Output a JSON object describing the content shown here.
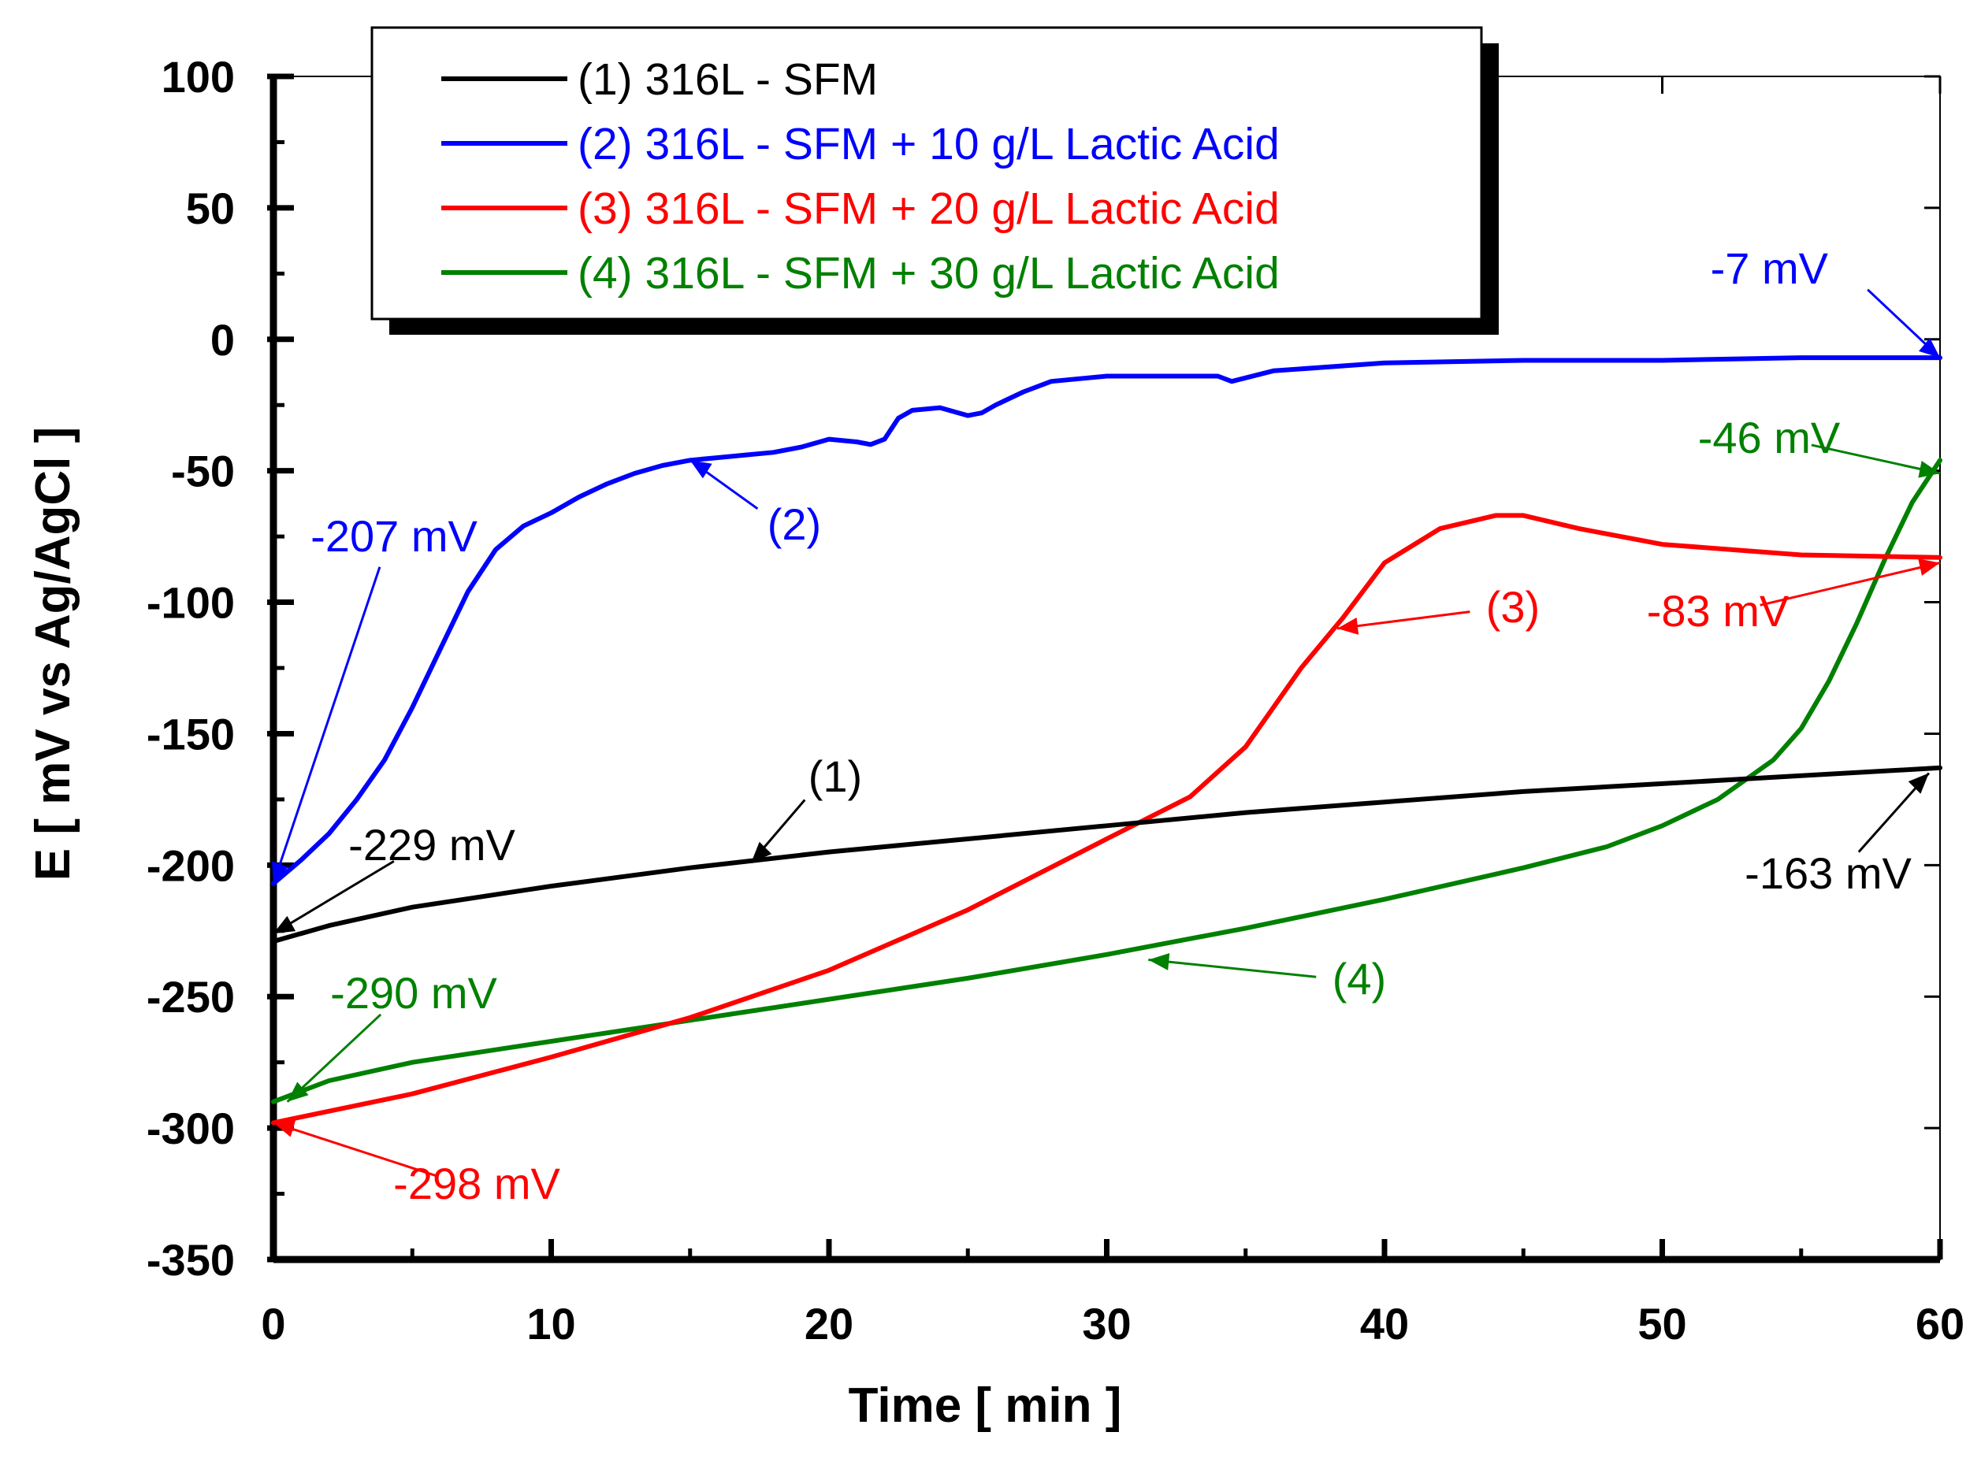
{
  "chart_data": {
    "type": "line",
    "title": "",
    "xlabel": "Time [ min ]",
    "ylabel": "E [ mV vs Ag/AgCl ]",
    "xlim": [
      0,
      60
    ],
    "ylim": [
      -350,
      100
    ],
    "xticks": [
      0,
      10,
      20,
      30,
      40,
      50,
      60
    ],
    "yticks": [
      100,
      50,
      0,
      -50,
      -100,
      -150,
      -200,
      -250,
      -300,
      -350
    ],
    "grid": false,
    "legend_position": "top-center",
    "series": [
      {
        "name": "(1) 316L - SFM",
        "color": "#000000",
        "x": [
          0,
          2,
          5,
          10,
          15,
          20,
          25,
          30,
          35,
          40,
          45,
          50,
          55,
          60
        ],
        "y": [
          -229,
          -223,
          -216,
          -208,
          -201,
          -195,
          -190,
          -185,
          -180,
          -176,
          -172,
          -169,
          -166,
          -163
        ]
      },
      {
        "name": "(2) 316L - SFM + 10 g/L Lactic Acid",
        "color": "#0000ff",
        "x": [
          0,
          1,
          2,
          3,
          4,
          5,
          6,
          7,
          8,
          9,
          10,
          11,
          12,
          13,
          14,
          15,
          16,
          17,
          18,
          19,
          20,
          21,
          21.5,
          22,
          22.5,
          23,
          24,
          25,
          25.5,
          26,
          27,
          28,
          30,
          32,
          34,
          34.5,
          36,
          40,
          45,
          50,
          55,
          60
        ],
        "y": [
          -207,
          -198,
          -188,
          -175,
          -160,
          -140,
          -118,
          -96,
          -80,
          -71,
          -66,
          -60,
          -55,
          -51,
          -48,
          -46,
          -45,
          -44,
          -43,
          -41,
          -38,
          -39,
          -40,
          -38,
          -30,
          -27,
          -26,
          -29,
          -28,
          -25,
          -20,
          -16,
          -14,
          -14,
          -14,
          -16,
          -12,
          -9,
          -8,
          -8,
          -7,
          -7
        ]
      },
      {
        "name": "(3) 316L - SFM + 20 g/L Lactic Acid",
        "color": "#ff0000",
        "x": [
          0,
          5,
          10,
          15,
          20,
          25,
          30,
          33,
          35,
          37,
          38.5,
          40,
          42,
          44,
          45,
          47,
          50,
          55,
          60
        ],
        "y": [
          -298,
          -287,
          -273,
          -258,
          -240,
          -217,
          -190,
          -174,
          -155,
          -125,
          -106,
          -85,
          -72,
          -67,
          -67,
          -72,
          -78,
          -82,
          -83
        ]
      },
      {
        "name": "(4) 316L - SFM + 30 g/L Lactic Acid",
        "color": "#008000",
        "x": [
          0,
          2,
          5,
          10,
          15,
          20,
          25,
          30,
          35,
          40,
          45,
          48,
          50,
          52,
          54,
          55,
          56,
          57,
          58,
          59,
          60
        ],
        "y": [
          -290,
          -282,
          -275,
          -267,
          -259,
          -251,
          -243,
          -234,
          -224,
          -213,
          -201,
          -193,
          -185,
          -175,
          -160,
          -148,
          -130,
          -108,
          -84,
          -62,
          -46
        ]
      }
    ],
    "annotations": [
      {
        "text": "-7 mV",
        "series": 2,
        "color": "#0000ff",
        "point": [
          60,
          -7
        ]
      },
      {
        "text": "(2)",
        "series": 2,
        "color": "#0000ff",
        "point": [
          15,
          -46
        ]
      },
      {
        "text": "-207 mV",
        "series": 2,
        "color": "#0000ff",
        "point": [
          0,
          -207
        ]
      },
      {
        "text": "-46 mV",
        "series": 4,
        "color": "#008000",
        "point": [
          60,
          -51
        ]
      },
      {
        "text": "(3)",
        "series": 3,
        "color": "#ff0000",
        "point": [
          38.3,
          -110
        ]
      },
      {
        "text": "-83 mV",
        "series": 3,
        "color": "#ff0000",
        "point": [
          60,
          -85
        ]
      },
      {
        "text": "(1)",
        "series": 1,
        "color": "#000000",
        "point": [
          17.2,
          -199
        ]
      },
      {
        "text": "-229 mV",
        "series": 1,
        "color": "#000000",
        "point": [
          0,
          -226
        ]
      },
      {
        "text": "-163 mV",
        "series": 1,
        "color": "#000000",
        "point": [
          59.6,
          -165
        ]
      },
      {
        "text": "(4)",
        "series": 4,
        "color": "#008000",
        "point": [
          31.5,
          -236
        ]
      },
      {
        "text": "-290 mV",
        "series": 4,
        "color": "#008000",
        "point": [
          0.5,
          -290
        ]
      },
      {
        "text": "-298 mV",
        "series": 3,
        "color": "#ff0000",
        "point": [
          0,
          -298
        ]
      }
    ]
  }
}
